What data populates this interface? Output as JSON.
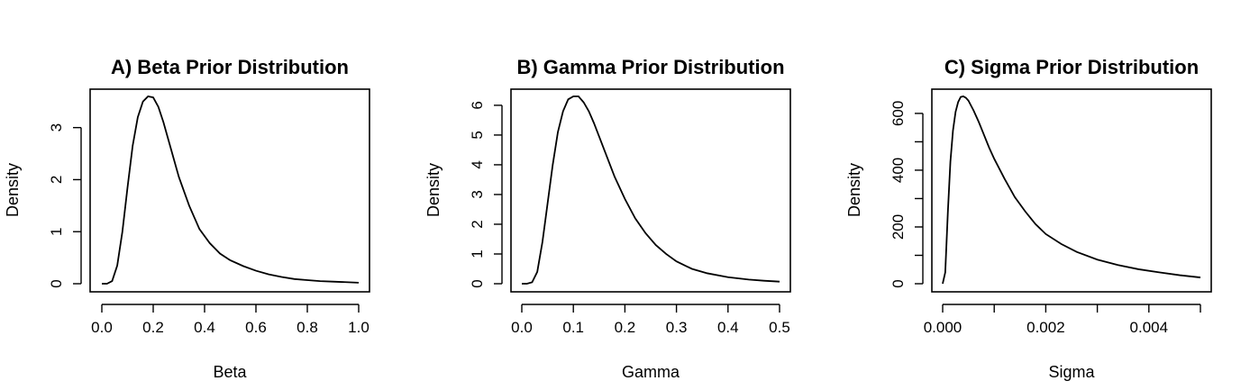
{
  "chart_data": [
    {
      "type": "line",
      "title": "A) Beta Prior Distribution",
      "xlabel": "Beta",
      "ylabel": "Density",
      "xlim": [
        0,
        1
      ],
      "ylim": [
        0,
        3.6
      ],
      "x_ticks": [
        0.0,
        0.2,
        0.4,
        0.6,
        0.8,
        1.0
      ],
      "x_tick_labels": [
        "0.0",
        "0.2",
        "0.4",
        "0.6",
        "0.8",
        "1.0"
      ],
      "y_ticks": [
        0,
        1,
        2,
        3
      ],
      "y_tick_labels": [
        "0",
        "1",
        "2",
        "3"
      ],
      "series": [
        {
          "x": [
            0.0,
            0.02,
            0.04,
            0.06,
            0.08,
            0.1,
            0.12,
            0.14,
            0.16,
            0.18,
            0.2,
            0.22,
            0.24,
            0.26,
            0.28,
            0.3,
            0.34,
            0.38,
            0.42,
            0.46,
            0.5,
            0.55,
            0.6,
            0.65,
            0.7,
            0.75,
            0.8,
            0.85,
            0.9,
            0.95,
            1.0
          ],
          "y": [
            0.0,
            0.0,
            0.05,
            0.35,
            1.0,
            1.85,
            2.65,
            3.2,
            3.5,
            3.6,
            3.58,
            3.4,
            3.1,
            2.75,
            2.4,
            2.05,
            1.5,
            1.05,
            0.78,
            0.58,
            0.45,
            0.34,
            0.25,
            0.18,
            0.13,
            0.09,
            0.07,
            0.05,
            0.04,
            0.03,
            0.02
          ]
        }
      ]
    },
    {
      "type": "line",
      "title": "B) Gamma Prior Distribution",
      "xlabel": "Gamma",
      "ylabel": "Density",
      "xlim": [
        0,
        0.5
      ],
      "ylim": [
        0,
        6.3
      ],
      "x_ticks": [
        0.0,
        0.1,
        0.2,
        0.3,
        0.4,
        0.5
      ],
      "x_tick_labels": [
        "0.0",
        "0.1",
        "0.2",
        "0.3",
        "0.4",
        "0.5"
      ],
      "y_ticks": [
        0,
        1,
        2,
        3,
        4,
        5,
        6
      ],
      "y_tick_labels": [
        "0",
        "1",
        "2",
        "3",
        "4",
        "5",
        "6"
      ],
      "series": [
        {
          "x": [
            0.0,
            0.01,
            0.02,
            0.03,
            0.04,
            0.05,
            0.06,
            0.07,
            0.08,
            0.09,
            0.1,
            0.11,
            0.12,
            0.13,
            0.14,
            0.15,
            0.16,
            0.17,
            0.18,
            0.2,
            0.22,
            0.24,
            0.26,
            0.28,
            0.3,
            0.33,
            0.36,
            0.4,
            0.44,
            0.47,
            0.5
          ],
          "y": [
            0.0,
            0.0,
            0.05,
            0.4,
            1.4,
            2.7,
            4.0,
            5.1,
            5.8,
            6.2,
            6.3,
            6.3,
            6.1,
            5.8,
            5.4,
            4.95,
            4.5,
            4.05,
            3.6,
            2.85,
            2.2,
            1.7,
            1.3,
            1.0,
            0.75,
            0.5,
            0.35,
            0.22,
            0.14,
            0.1,
            0.07
          ]
        }
      ]
    },
    {
      "type": "line",
      "title": "C) Sigma Prior Distribution",
      "xlabel": "Sigma",
      "ylabel": "Density",
      "xlim": [
        0,
        0.005
      ],
      "ylim": [
        0,
        660
      ],
      "x_ticks": [
        0.0,
        0.001,
        0.002,
        0.003,
        0.004,
        0.005
      ],
      "x_tick_labels": [
        "0.000",
        "",
        "0.002",
        "",
        "0.004",
        ""
      ],
      "y_ticks": [
        0,
        100,
        200,
        300,
        400,
        500,
        600
      ],
      "y_tick_labels": [
        "0",
        "",
        "200",
        "",
        "400",
        "",
        "600"
      ],
      "series": [
        {
          "x": [
            0.0,
            5e-05,
            0.0001,
            0.00015,
            0.0002,
            0.00025,
            0.0003,
            0.00035,
            0.0004,
            0.00045,
            0.0005,
            0.0006,
            0.0007,
            0.0008,
            0.0009,
            0.001,
            0.0012,
            0.0014,
            0.0016,
            0.0018,
            0.002,
            0.0023,
            0.0026,
            0.003,
            0.0034,
            0.0038,
            0.0042,
            0.0046,
            0.005
          ],
          "y": [
            0,
            40,
            250,
            430,
            540,
            605,
            640,
            658,
            660,
            655,
            645,
            610,
            570,
            525,
            480,
            440,
            370,
            305,
            255,
            210,
            175,
            140,
            112,
            85,
            66,
            51,
            40,
            30,
            22
          ]
        }
      ]
    }
  ]
}
